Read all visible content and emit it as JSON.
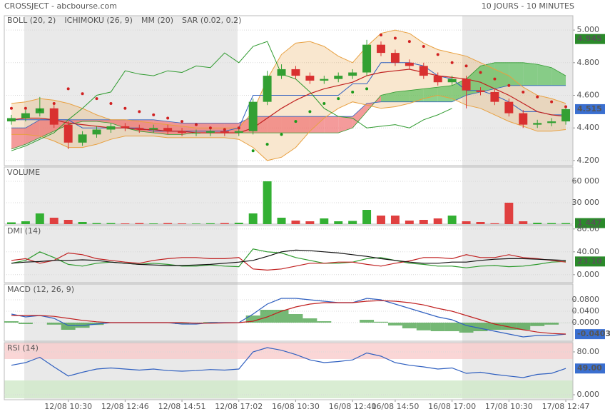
{
  "header": {
    "title": "CROSSJECT - abcbourse.com",
    "period": "10 JOURS - 10 MINUTES"
  },
  "chart_data": [
    {
      "type": "candlestick",
      "legend": [
        {
          "label": "BOLL (20, 2)",
          "color": "#e8a040"
        },
        {
          "label": "ICHIMOKU (26, 9)",
          "color": "#3060c0"
        },
        {
          "label": "MM (20)",
          "color": "#c02020"
        },
        {
          "label": "SAR (0.02, 0.2)",
          "color": "#d02020"
        }
      ],
      "ylim": [
        4.169,
        5.088
      ],
      "yticks": [
        {
          "value": 4.2,
          "label": "4.200"
        },
        {
          "value": 4.4,
          "label": "4.400"
        },
        {
          "value": 4.6,
          "label": "4.600"
        },
        {
          "value": 4.8,
          "label": "4.800"
        },
        {
          "value": 5.0,
          "label": "5.000"
        }
      ],
      "up_color": "#33a033",
      "down_color": "#d93030",
      "open": [
        4.44,
        4.46,
        4.49,
        4.52,
        4.42,
        4.31,
        4.36,
        4.39,
        4.41,
        4.4,
        4.39,
        4.4,
        4.38,
        4.37,
        4.37,
        4.38,
        4.37,
        4.38,
        4.56,
        4.72,
        4.76,
        4.72,
        4.69,
        4.7,
        4.72,
        4.74,
        4.91,
        4.86,
        4.8,
        4.78,
        4.72,
        4.68,
        4.7,
        4.63,
        4.62,
        4.56,
        4.49,
        4.42,
        4.43,
        4.44
      ],
      "high": [
        4.48,
        4.51,
        4.59,
        4.54,
        4.44,
        4.38,
        4.41,
        4.43,
        4.43,
        4.42,
        4.42,
        4.42,
        4.4,
        4.39,
        4.4,
        4.4,
        4.4,
        4.58,
        4.75,
        4.79,
        4.78,
        4.74,
        4.72,
        4.74,
        4.76,
        4.94,
        4.93,
        4.88,
        4.82,
        4.8,
        4.74,
        4.72,
        4.72,
        4.65,
        4.64,
        4.58,
        4.51,
        4.45,
        4.46,
        4.53
      ],
      "low": [
        4.42,
        4.44,
        4.47,
        4.4,
        4.27,
        4.29,
        4.34,
        4.37,
        4.38,
        4.37,
        4.37,
        4.36,
        4.35,
        4.35,
        4.35,
        4.35,
        4.35,
        4.36,
        4.54,
        4.7,
        4.7,
        4.67,
        4.67,
        4.68,
        4.7,
        4.72,
        4.84,
        4.78,
        4.76,
        4.7,
        4.66,
        4.66,
        4.52,
        4.6,
        4.54,
        4.47,
        4.4,
        4.4,
        4.41,
        4.42
      ],
      "close": [
        4.46,
        4.49,
        4.52,
        4.42,
        4.31,
        4.36,
        4.39,
        4.41,
        4.4,
        4.39,
        4.4,
        4.38,
        4.37,
        4.37,
        4.38,
        4.37,
        4.38,
        4.56,
        4.72,
        4.76,
        4.72,
        4.69,
        4.7,
        4.72,
        4.74,
        4.91,
        4.86,
        4.8,
        4.78,
        4.72,
        4.68,
        4.7,
        4.63,
        4.62,
        4.56,
        4.49,
        4.42,
        4.43,
        4.44,
        4.515
      ],
      "bollinger": {
        "color": "#e8a040",
        "upper": [
          4.55,
          4.56,
          4.58,
          4.57,
          4.55,
          4.52,
          4.48,
          4.45,
          4.45,
          4.44,
          4.43,
          4.42,
          4.41,
          4.4,
          4.4,
          4.4,
          4.4,
          4.5,
          4.7,
          4.85,
          4.92,
          4.93,
          4.9,
          4.84,
          4.8,
          4.9,
          4.98,
          5.0,
          4.98,
          4.92,
          4.88,
          4.86,
          4.84,
          4.8,
          4.76,
          4.72,
          4.65,
          4.6,
          4.58,
          4.55
        ],
        "lower": [
          4.36,
          4.36,
          4.35,
          4.32,
          4.28,
          4.28,
          4.3,
          4.33,
          4.35,
          4.35,
          4.35,
          4.34,
          4.34,
          4.34,
          4.34,
          4.34,
          4.33,
          4.28,
          4.2,
          4.22,
          4.28,
          4.38,
          4.46,
          4.52,
          4.56,
          4.54,
          4.52,
          4.53,
          4.55,
          4.58,
          4.6,
          4.58,
          4.54,
          4.52,
          4.48,
          4.44,
          4.41,
          4.38,
          4.38,
          4.39
        ]
      },
      "ichimoku": {
        "bull_color": "#5cbf5c",
        "bear_color": "#f07070",
        "kijun_color": "#3060c0",
        "chikou_color": "#2e9a2e",
        "span_a": [
          4.27,
          4.3,
          4.34,
          4.38,
          4.42,
          4.44,
          4.44,
          4.43,
          4.4,
          4.38,
          4.37,
          4.36,
          4.36,
          4.37,
          4.37,
          4.37,
          4.37,
          4.37,
          4.37,
          4.37,
          4.37,
          4.37,
          4.37,
          4.37,
          4.4,
          4.5,
          4.6,
          4.62,
          4.63,
          4.64,
          4.65,
          4.66,
          4.7,
          4.78,
          4.8,
          4.8,
          4.8,
          4.79,
          4.77,
          4.72
        ],
        "span_b": [
          4.4,
          4.4,
          4.45,
          4.45,
          4.45,
          4.45,
          4.45,
          4.45,
          4.45,
          4.45,
          4.45,
          4.44,
          4.43,
          4.43,
          4.43,
          4.43,
          4.43,
          4.47,
          4.47,
          4.47,
          4.47,
          4.47,
          4.47,
          4.47,
          4.47,
          4.55,
          4.56,
          4.56,
          4.56,
          4.56,
          4.56,
          4.56,
          4.6,
          4.62,
          4.64,
          4.66,
          4.66,
          4.66,
          4.66,
          4.66
        ],
        "kijun": [
          4.45,
          4.45,
          4.45,
          4.45,
          4.45,
          4.4,
          4.4,
          4.4,
          4.4,
          4.4,
          4.38,
          4.38,
          4.38,
          4.38,
          4.38,
          4.38,
          4.4,
          4.6,
          4.6,
          4.6,
          4.6,
          4.6,
          4.6,
          4.6,
          4.67,
          4.67,
          4.8,
          4.8,
          4.8,
          4.78,
          4.72,
          4.7,
          4.63,
          4.63,
          4.6,
          4.56,
          4.5,
          4.5,
          4.48,
          4.48
        ],
        "chikou": [
          4.26,
          4.29,
          4.33,
          4.37,
          4.45,
          4.52,
          4.6,
          4.62,
          4.75,
          4.73,
          4.72,
          4.75,
          4.74,
          4.78,
          4.77,
          4.86,
          4.8,
          4.9,
          4.93,
          4.73,
          4.7,
          4.62,
          4.52,
          4.47,
          4.46,
          4.4,
          4.41,
          4.42,
          4.4,
          4.45,
          4.48,
          4.52,
          null,
          null,
          null,
          null,
          null,
          null,
          null,
          null
        ]
      },
      "mm": {
        "color": "#c02020",
        "values": [
          4.45,
          4.46,
          4.46,
          4.45,
          4.43,
          4.42,
          4.41,
          4.4,
          4.4,
          4.39,
          4.39,
          4.38,
          4.38,
          4.37,
          4.37,
          4.37,
          4.37,
          4.4,
          4.46,
          4.52,
          4.57,
          4.61,
          4.64,
          4.66,
          4.68,
          4.72,
          4.74,
          4.75,
          4.76,
          4.74,
          4.72,
          4.71,
          4.7,
          4.68,
          4.64,
          4.6,
          4.55,
          4.5,
          4.48,
          4.47
        ]
      },
      "sar": {
        "color_above": "#d02020",
        "color_below": "#1a9a1a",
        "values": [
          4.52,
          4.52,
          4.51,
          4.55,
          4.64,
          4.61,
          4.58,
          4.55,
          4.52,
          4.5,
          4.48,
          4.46,
          4.44,
          4.42,
          4.4,
          4.39,
          4.4,
          4.26,
          4.3,
          4.36,
          4.44,
          4.5,
          4.55,
          4.58,
          4.62,
          4.64,
          4.97,
          4.95,
          4.93,
          4.9,
          4.85,
          4.8,
          4.78,
          4.74,
          4.7,
          4.66,
          4.62,
          4.59,
          4.56,
          4.53
        ]
      },
      "badges": [
        {
          "value": 4.945,
          "label": "4.945",
          "color": "#2a8a2a"
        },
        {
          "value": 4.515,
          "label": "4.515",
          "color": "#3a6fd0"
        }
      ]
    },
    {
      "type": "bar",
      "title": "VOLUME",
      "title_color": "#2e9a2e",
      "up_color": "#33b033",
      "down_color": "#e04040",
      "ylim": [
        0,
        80000
      ],
      "yticks": [
        {
          "value": 30000,
          "label": "30 000"
        },
        {
          "value": 60000,
          "label": "60 000"
        }
      ],
      "values": [
        2500,
        4000,
        15000,
        9000,
        6000,
        3000,
        1500,
        1500,
        1000,
        1500,
        1000,
        1500,
        1000,
        800,
        1200,
        1500,
        2000,
        15000,
        60000,
        9000,
        5000,
        4000,
        8000,
        4000,
        4500,
        20000,
        12000,
        12000,
        5000,
        6000,
        8000,
        12000,
        4000,
        3000,
        1200,
        30000,
        4000,
        2000,
        1500,
        1447
      ],
      "badges": [
        {
          "value": 1447,
          "label": "1 447",
          "color": "#2a8a2a"
        }
      ]
    },
    {
      "type": "line",
      "title": "DMI (14)",
      "title_color": "#2e9a2e",
      "ylim": [
        -14,
        86
      ],
      "yticks": [
        {
          "value": 0,
          "label": "0.000"
        },
        {
          "value": 40,
          "label": "40.00"
        },
        {
          "value": 80,
          "label": "80.00"
        }
      ],
      "series": [
        {
          "color": "#2e9a2e",
          "values": [
            20,
            25,
            40,
            30,
            18,
            15,
            20,
            22,
            20,
            18,
            20,
            18,
            15,
            15,
            17,
            15,
            14,
            45,
            40,
            38,
            30,
            25,
            20,
            20,
            22,
            28,
            30,
            25,
            20,
            18,
            15,
            15,
            12,
            15,
            16,
            14,
            15,
            18,
            22,
            23.1
          ]
        },
        {
          "color": "#c02020",
          "values": [
            25,
            28,
            20,
            25,
            38,
            35,
            28,
            25,
            22,
            20,
            25,
            28,
            30,
            30,
            28,
            28,
            30,
            10,
            8,
            10,
            15,
            20,
            20,
            22,
            22,
            18,
            15,
            20,
            24,
            30,
            30,
            28,
            35,
            30,
            30,
            35,
            30,
            28,
            25,
            22
          ]
        },
        {
          "color": "#111111",
          "values": [
            20,
            22,
            23,
            25,
            25,
            26,
            25,
            22,
            20,
            18,
            17,
            16,
            16,
            17,
            18,
            20,
            22,
            25,
            32,
            40,
            43,
            42,
            40,
            38,
            35,
            32,
            28,
            25,
            22,
            20,
            20,
            22,
            22,
            25,
            27,
            28,
            28,
            27,
            26,
            25
          ]
        }
      ],
      "badges": [
        {
          "value": 23.1,
          "label": "23.10",
          "color": "#2a8a2a"
        }
      ]
    },
    {
      "type": "macd",
      "title": "MACD (12, 26, 9)",
      "title_color": "#3060c0",
      "ylim": [
        -0.065,
        0.135
      ],
      "yticks": [
        {
          "value": 0,
          "label": "0.0000"
        },
        {
          "value": 0.04,
          "label": "0.0400"
        },
        {
          "value": 0.08,
          "label": "0.0800"
        }
      ],
      "macd_color": "#3060c0",
      "signal_color": "#c02020",
      "histogram_color": "#3a9a3a",
      "macd": [
        0.03,
        0.02,
        0.025,
        0.015,
        -0.01,
        -0.01,
        -0.005,
        0,
        0,
        0,
        0,
        0,
        -0.005,
        -0.005,
        0,
        0,
        0,
        0.03,
        0.065,
        0.085,
        0.085,
        0.08,
        0.075,
        0.07,
        0.07,
        0.085,
        0.08,
        0.065,
        0.05,
        0.035,
        0.02,
        0.01,
        -0.01,
        -0.02,
        -0.03,
        -0.04,
        -0.05,
        -0.045,
        -0.045,
        -0.0403
      ],
      "signal": [
        0.025,
        0.025,
        0.025,
        0.022,
        0.015,
        0.008,
        0.003,
        0,
        0,
        0,
        0,
        0,
        0,
        -0.002,
        -0.002,
        -0.001,
        0,
        0.005,
        0.02,
        0.04,
        0.055,
        0.065,
        0.07,
        0.07,
        0.07,
        0.075,
        0.077,
        0.075,
        0.07,
        0.062,
        0.05,
        0.04,
        0.025,
        0.01,
        -0.005,
        -0.015,
        -0.025,
        -0.033,
        -0.038,
        -0.04
      ],
      "histogram": [
        0.005,
        -0.005,
        0,
        -0.007,
        -0.025,
        -0.018,
        -0.008,
        0,
        0,
        0,
        0,
        0,
        -0.005,
        -0.003,
        0.002,
        0.001,
        0,
        0.025,
        0.045,
        0.045,
        0.03,
        0.015,
        0.005,
        0,
        0,
        0.01,
        0.003,
        -0.01,
        -0.02,
        -0.027,
        -0.03,
        -0.03,
        -0.035,
        -0.03,
        -0.025,
        -0.025,
        -0.025,
        -0.012,
        -0.007,
        -0.0003
      ],
      "badges": [
        {
          "value": -0.0403,
          "label": "-0.0403",
          "color": "#3a6fd0"
        }
      ]
    },
    {
      "type": "line",
      "title": "RSI (14)",
      "title_color": "#3060c0",
      "ylim": [
        -9.3,
        97.3
      ],
      "yticks": [
        {
          "value": 0,
          "label": "0.000"
        },
        {
          "value": 80,
          "label": "80.00"
        }
      ],
      "series": [
        {
          "color": "#3060c0",
          "values": [
            55,
            60,
            70,
            52,
            35,
            42,
            48,
            50,
            48,
            46,
            48,
            45,
            44,
            45,
            47,
            46,
            48,
            80,
            88,
            83,
            75,
            65,
            60,
            62,
            65,
            78,
            72,
            60,
            55,
            52,
            48,
            50,
            40,
            42,
            38,
            35,
            32,
            38,
            40,
            49
          ]
        }
      ],
      "categories": [
        null,
        null,
        null,
        null,
        "12/08 10:30",
        null,
        null,
        null,
        "12/08 12:46",
        null,
        null,
        null,
        "12/08 14:51",
        null,
        null,
        null,
        "12/08 17:02",
        null,
        null,
        null,
        "16/08 10:30",
        null,
        null,
        null,
        "16/08 12:40",
        null,
        null,
        "16/08 14:50",
        null,
        null,
        null,
        "16/08 17:00",
        null,
        null,
        null,
        "17/08 10:30",
        null,
        null,
        null,
        "17/08 12:47"
      ],
      "badges": [
        {
          "value": 49,
          "label": "49.00",
          "color": "#3a6fd0"
        }
      ]
    }
  ]
}
